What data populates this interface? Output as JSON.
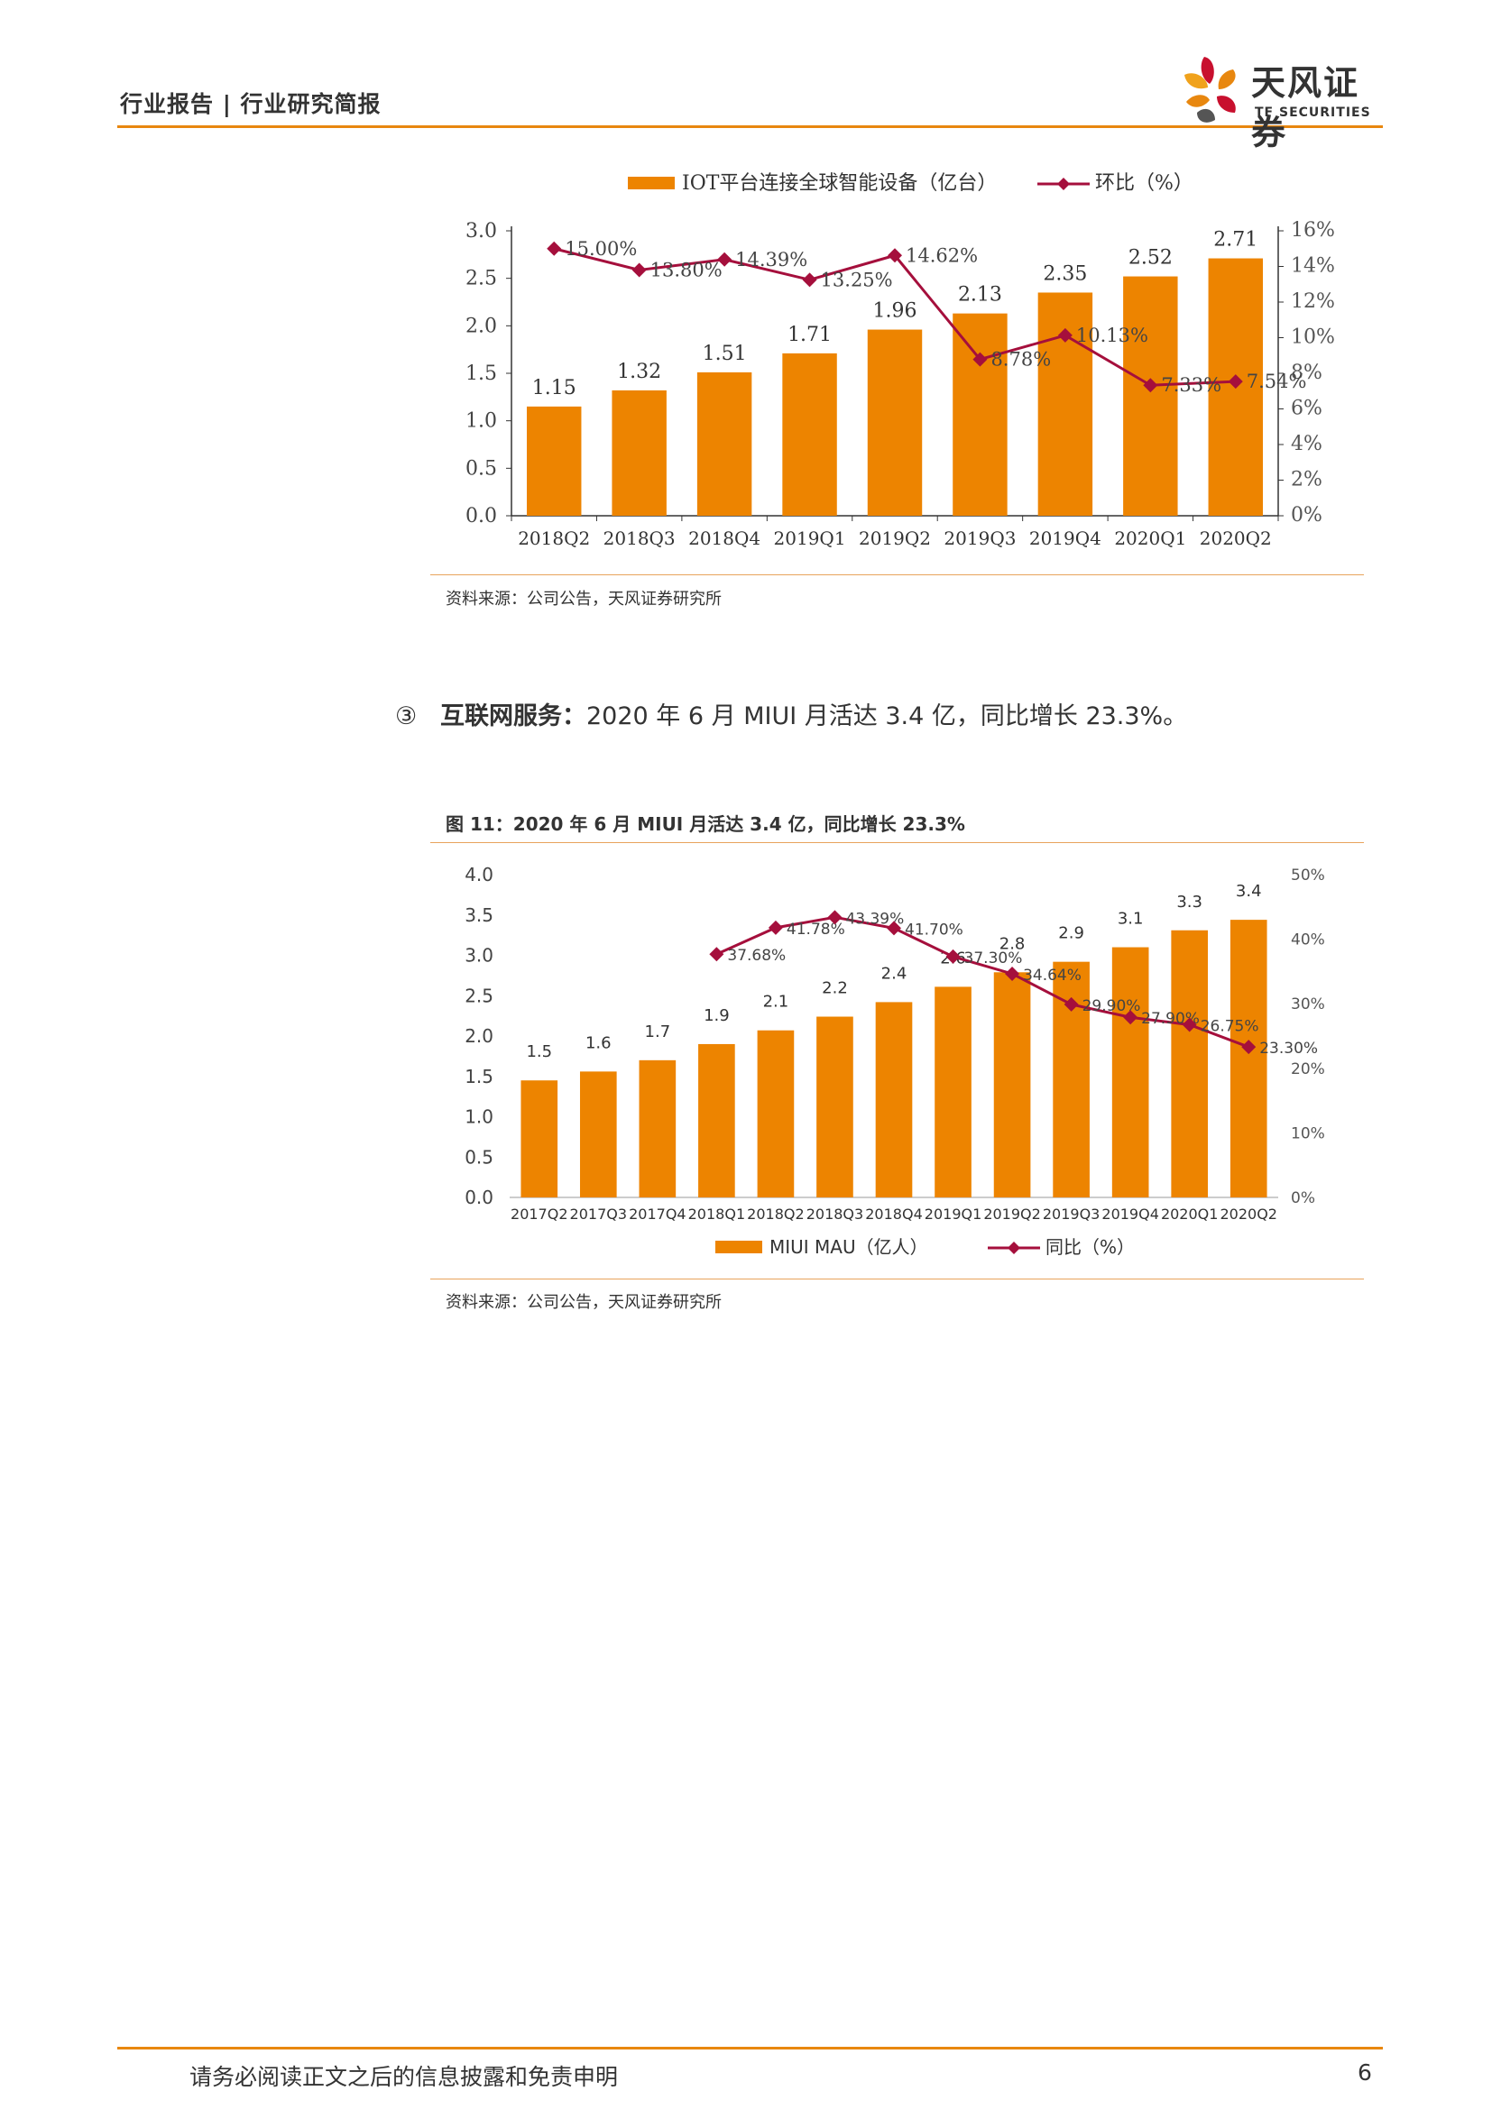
{
  "header": {
    "title": "行业报告 | 行业研究简报"
  },
  "logo": {
    "cn": "天风证券",
    "en": "TF SECURITIES"
  },
  "chart1": {
    "legend_bar": "IOT平台连接全球智能设备（亿台）",
    "legend_line": "环比（%）",
    "source": "资料来源：公司公告，天风证券研究所"
  },
  "section": {
    "marker": "③",
    "heading": "互联网服务：",
    "text": "2020 年 6 月 MIUI 月活达 3.4 亿，同比增长 23.3%。"
  },
  "chart2": {
    "title": "图 11：2020 年 6 月 MIUI 月活达 3.4 亿，同比增长 23.3%",
    "legend_bar": "MIUI MAU（亿人）",
    "legend_line": "同比（%）",
    "source": "资料来源：公司公告，天风证券研究所"
  },
  "footer": {
    "text": "请务必阅读正文之后的信息披露和免责申明",
    "page": "6"
  },
  "chart_data": [
    {
      "type": "bar",
      "categories": [
        "2018Q2",
        "2018Q3",
        "2018Q4",
        "2019Q1",
        "2019Q2",
        "2019Q3",
        "2019Q4",
        "2020Q1",
        "2020Q2"
      ],
      "series": [
        {
          "name": "IOT平台连接全球智能设备（亿台）",
          "type": "bar",
          "axis": "left",
          "values": [
            1.15,
            1.32,
            1.51,
            1.71,
            1.96,
            2.13,
            2.35,
            2.52,
            2.71
          ],
          "labels": [
            "1.15",
            "1.32",
            "1.51",
            "1.71",
            "1.96",
            "2.13",
            "2.35",
            "2.52",
            "2.71"
          ]
        },
        {
          "name": "环比（%）",
          "type": "line",
          "axis": "right",
          "values": [
            15.0,
            13.8,
            14.39,
            13.25,
            14.62,
            8.78,
            10.13,
            7.33,
            7.54
          ],
          "labels": [
            "15.00%",
            "13.80%",
            "14.39%",
            "13.25%",
            "14.62%",
            "8.78%",
            "10.13%",
            "7.33%",
            "7.54%"
          ]
        }
      ],
      "ylim": [
        0,
        3.0
      ],
      "yticks": [
        "0.0",
        "0.5",
        "1.0",
        "1.5",
        "2.0",
        "2.5",
        "3.0"
      ],
      "y2lim": [
        0,
        16
      ],
      "y2ticks": [
        "0%",
        "2%",
        "4%",
        "6%",
        "8%",
        "10%",
        "12%",
        "14%",
        "16%"
      ],
      "legend": "top",
      "colors": {
        "bar": "#ed8400",
        "line": "#a50f3c"
      }
    },
    {
      "type": "bar",
      "categories": [
        "2017Q2",
        "2017Q3",
        "2017Q4",
        "2018Q1",
        "2018Q2",
        "2018Q3",
        "2018Q4",
        "2019Q1",
        "2019Q2",
        "2019Q3",
        "2019Q4",
        "2020Q1",
        "2020Q2"
      ],
      "series": [
        {
          "name": "MIUI MAU（亿人）",
          "type": "bar",
          "axis": "left",
          "values": [
            1.45,
            1.56,
            1.7,
            1.9,
            2.07,
            2.24,
            2.42,
            2.61,
            2.79,
            2.92,
            3.1,
            3.31,
            3.44
          ],
          "labels": [
            "1.5",
            "1.6",
            "1.7",
            "1.9",
            "2.1",
            "2.2",
            "2.4",
            "2.6",
            "2.8",
            "2.9",
            "3.1",
            "3.3",
            "3.4"
          ]
        },
        {
          "name": "同比（%）",
          "type": "line",
          "axis": "right",
          "values": [
            null,
            null,
            null,
            37.68,
            41.78,
            43.39,
            41.7,
            37.3,
            34.64,
            29.9,
            27.9,
            26.75,
            23.3
          ],
          "labels": [
            "",
            "",
            "",
            "37.68%",
            "41.78%",
            "43.39%",
            "41.70%",
            "37.30%",
            "34.64%",
            "29.90%",
            "27.90%",
            "26.75%",
            "23.30%"
          ]
        }
      ],
      "ylim": [
        0,
        4.0
      ],
      "yticks": [
        "0.0",
        "0.5",
        "1.0",
        "1.5",
        "2.0",
        "2.5",
        "3.0",
        "3.5",
        "4.0"
      ],
      "y2lim": [
        0,
        50
      ],
      "y2ticks": [
        "0%",
        "10%",
        "20%",
        "30%",
        "40%",
        "50%"
      ],
      "legend": "bottom",
      "colors": {
        "bar": "#ed8400",
        "line": "#a50f3c"
      }
    }
  ]
}
